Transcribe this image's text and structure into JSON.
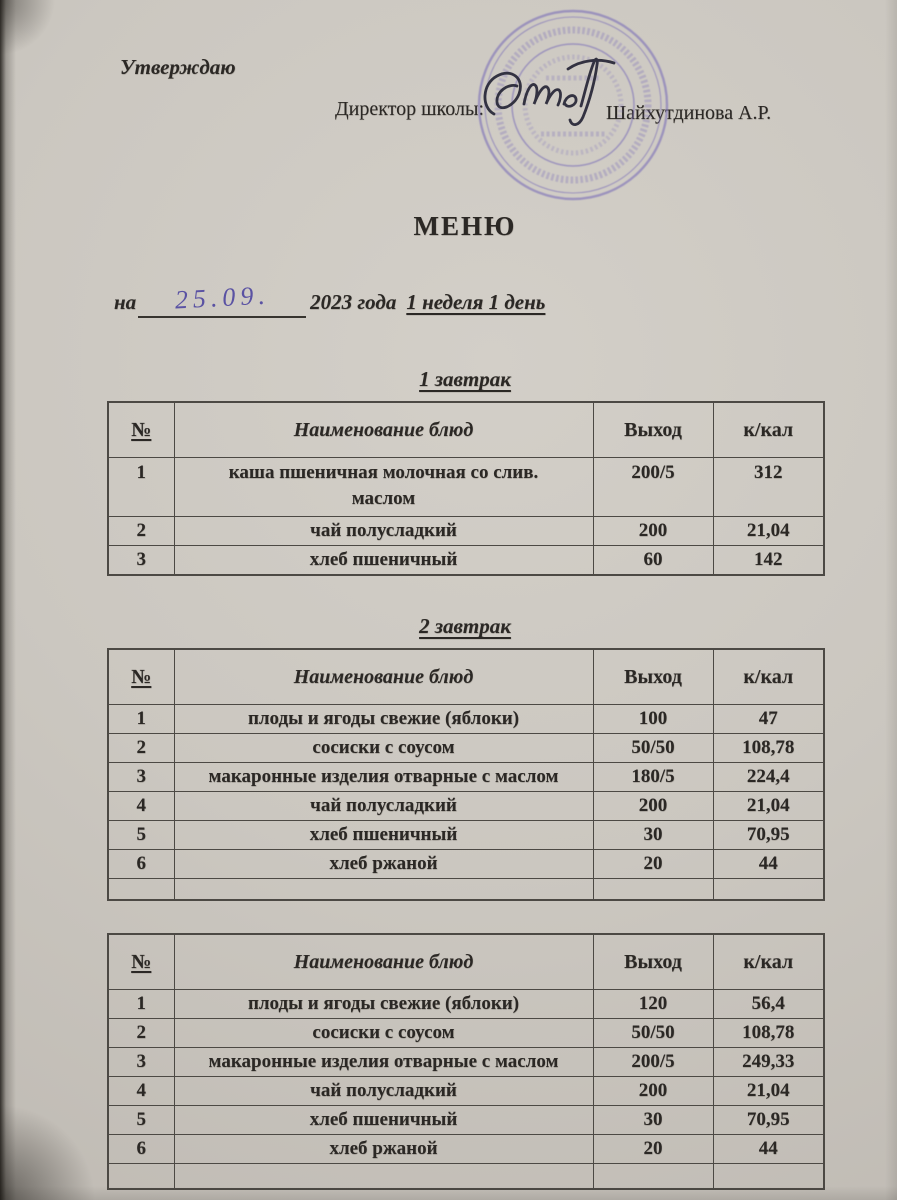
{
  "document": {
    "approve": "Утверждаю",
    "director_label": "Директор школы:",
    "director_name": "Шайхутдинова А.Р.",
    "title": "МЕНЮ",
    "date": {
      "prefix": "на",
      "handwritten": "25.09.",
      "year": "2023 года",
      "week_day": "1 неделя 1 день"
    }
  },
  "icons": {
    "stamp": "round-purple-school-stamp",
    "signature": "director-signature-ink"
  },
  "table_columns": [
    "№",
    "Наименование блюд",
    "Выход",
    "к/кал"
  ],
  "tables": [
    {
      "heading": "1 завтрак",
      "empty_last_row": false,
      "rows": [
        [
          "1",
          "каша пшеничная молочная со слив.\nмаслом",
          "200/5",
          "312"
        ],
        [
          "2",
          "чай полусладкий",
          "200",
          "21,04"
        ],
        [
          "3",
          "хлеб пшеничный",
          "60",
          "142"
        ]
      ]
    },
    {
      "heading": "2 завтрак",
      "empty_last_row": true,
      "rows": [
        [
          "1",
          "плоды и ягоды свежие (яблоки)",
          "100",
          "47"
        ],
        [
          "2",
          "сосиски с соусом",
          "50/50",
          "108,78"
        ],
        [
          "3",
          "макаронные изделия отварные с маслом",
          "180/5",
          "224,4"
        ],
        [
          "4",
          "чай полусладкий",
          "200",
          "21,04"
        ],
        [
          "5",
          "хлеб пшеничный",
          "30",
          "70,95"
        ],
        [
          "6",
          "хлеб ржаной",
          "20",
          "44"
        ]
      ]
    },
    {
      "heading": "",
      "empty_last_row": true,
      "rows": [
        [
          "1",
          "плоды и ягоды свежие (яблоки)",
          "120",
          "56,4"
        ],
        [
          "2",
          "сосиски с соусом",
          "50/50",
          "108,78"
        ],
        [
          "3",
          "макаронные изделия отварные с маслом",
          "200/5",
          "249,33"
        ],
        [
          "4",
          "чай полусладкий",
          "200",
          "21,04"
        ],
        [
          "5",
          "хлеб пшеничный",
          "30",
          "70,95"
        ],
        [
          "6",
          "хлеб ржаной",
          "20",
          "44"
        ]
      ]
    }
  ],
  "colors": {
    "paper": "#cbc7c0",
    "ink": "#2b2825",
    "table_border": "#4c4944",
    "handwriting_ink": "#5a52a3",
    "stamp_purple": "#7d71b8",
    "signature_ink": "#262636"
  }
}
